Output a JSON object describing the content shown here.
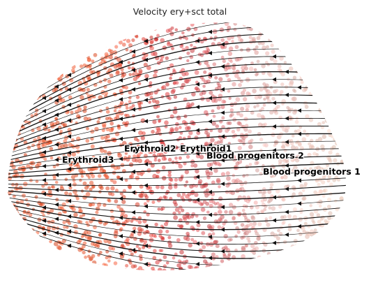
{
  "chart_data": {
    "type": "scatter",
    "title": "Velocity ery+sct total",
    "xlabel": "",
    "ylabel": "",
    "axes_visible": false,
    "grid": false,
    "overlay": "velocity-streamlines",
    "clusters": [
      {
        "name": "Erythroid3",
        "color": "#e8562e"
      },
      {
        "name": "Erythroid2",
        "color": "#d93a3a"
      },
      {
        "name": "Erythroid1",
        "color": "#d6545a"
      },
      {
        "name": "Blood progenitors 2",
        "color": "#e6b3ae"
      },
      {
        "name": "Blood progenitors 1",
        "color": "#f0d2c0"
      }
    ]
  }
}
